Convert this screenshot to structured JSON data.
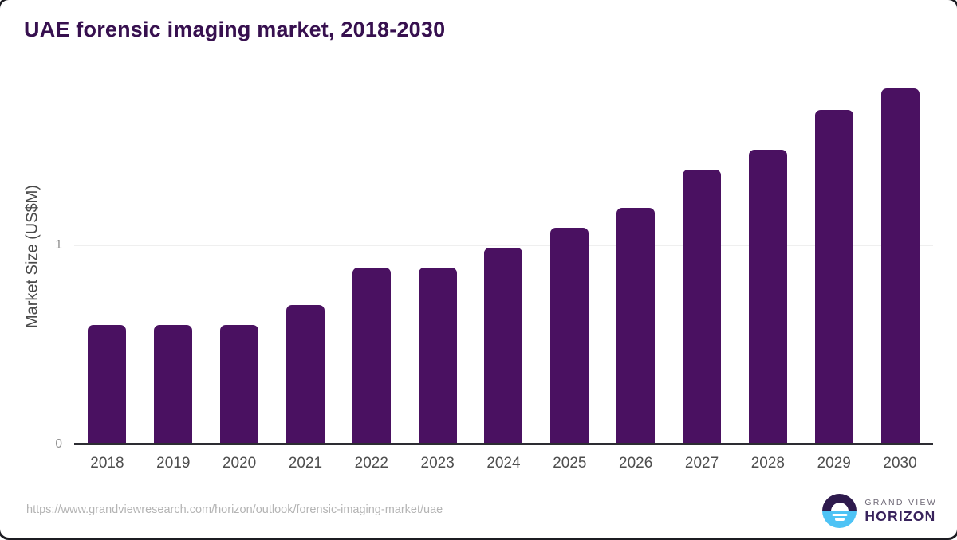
{
  "chart_data": {
    "type": "bar",
    "title": "UAE forensic imaging market, 2018-2030",
    "ylabel": "Market Size (US$M)",
    "xlabel": "",
    "categories": [
      "2018",
      "2019",
      "2020",
      "2021",
      "2022",
      "2023",
      "2024",
      "2025",
      "2026",
      "2027",
      "2028",
      "2029",
      "2030"
    ],
    "values": [
      0.6,
      0.6,
      0.6,
      0.7,
      0.89,
      0.89,
      0.99,
      1.09,
      1.19,
      1.38,
      1.48,
      1.68,
      1.79
    ],
    "ylim": [
      0,
      1.9
    ],
    "y_ticks": [
      0,
      1
    ],
    "grid": "horizontal-at-1",
    "legend": "none",
    "bar_color": "#4a1161"
  },
  "footer": {
    "source_url": "https://www.grandviewresearch.com/horizon/outlook/forensic-imaging-market/uae",
    "logo": {
      "line1": "GRAND VIEW",
      "line2": "HORIZON"
    }
  },
  "colors": {
    "title_text": "#37104f",
    "bar_fill": "#4a1161",
    "axis_line": "#2d2d33",
    "gridline": "#efefef",
    "logo_purple": "#2e1a4d",
    "logo_blue": "#4ec3f5"
  }
}
